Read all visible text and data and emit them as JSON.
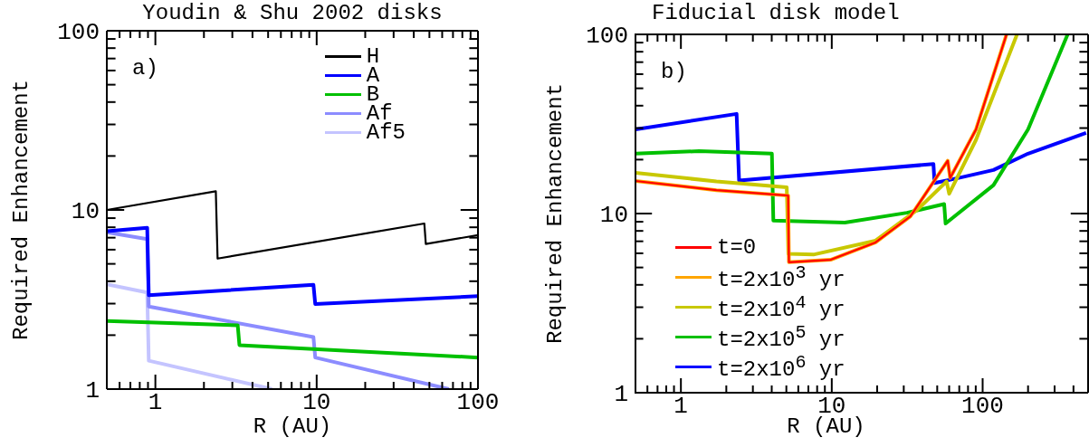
{
  "chart_data": [
    {
      "type": "line",
      "title": "Youdin & Shu 2002 disks",
      "xlabel": "R (AU)",
      "ylabel": "Required Enhancement",
      "annotations": [
        "a)"
      ],
      "log": "xy",
      "legend": "top right",
      "xlim": [
        0.5,
        100
      ],
      "ylim": [
        1,
        100
      ],
      "xticks": [
        {
          "value": 0.5,
          "label": null
        },
        {
          "value": 0.6,
          "label": null
        },
        {
          "value": 0.7,
          "label": null
        },
        {
          "value": 0.8,
          "label": null
        },
        {
          "value": 0.9,
          "label": null
        },
        1,
        {
          "value": 2,
          "label": null
        },
        {
          "value": 3,
          "label": null
        },
        {
          "value": 4,
          "label": null
        },
        {
          "value": 5,
          "label": null
        },
        {
          "value": 6,
          "label": null
        },
        {
          "value": 7,
          "label": null
        },
        {
          "value": 8,
          "label": null
        },
        {
          "value": 9,
          "label": null
        },
        10,
        {
          "value": 20,
          "label": null
        },
        {
          "value": 30,
          "label": null
        },
        {
          "value": 40,
          "label": null
        },
        {
          "value": 50,
          "label": null
        },
        {
          "value": 60,
          "label": null
        },
        {
          "value": 70,
          "label": null
        },
        {
          "value": 80,
          "label": null
        },
        {
          "value": 90,
          "label": null
        },
        100
      ],
      "yticks": [
        1,
        {
          "value": 2,
          "label": null
        },
        {
          "value": 3,
          "label": null
        },
        {
          "value": 4,
          "label": null
        },
        {
          "value": 5,
          "label": null
        },
        {
          "value": 6,
          "label": null
        },
        {
          "value": 7,
          "label": null
        },
        {
          "value": 8,
          "label": null
        },
        {
          "value": 9,
          "label": null
        },
        10,
        {
          "value": 20,
          "label": null
        },
        {
          "value": 30,
          "label": null
        },
        {
          "value": 40,
          "label": null
        },
        {
          "value": 50,
          "label": null
        },
        {
          "value": 60,
          "label": null
        },
        {
          "value": 70,
          "label": null
        },
        {
          "value": 80,
          "label": null
        },
        {
          "value": 90,
          "label": null
        },
        100
      ],
      "series": [
        {
          "name": "H",
          "color": "#000000",
          "x": [
            0.5,
            2.37,
            2.43,
            46.5,
            47.5,
            100
          ],
          "values": [
            10,
            12.7,
            5.35,
            8.4,
            6.46,
            7.23
          ]
        },
        {
          "name": "A",
          "color": "#0000ff",
          "x": [
            0.5,
            0.89,
            0.91,
            9.55,
            9.8,
            100
          ],
          "values": [
            7.6,
            7.95,
            3.34,
            3.82,
            2.98,
            3.3
          ]
        },
        {
          "name": "B",
          "color": "#00c000",
          "x": [
            0.5,
            3.24,
            3.32,
            100
          ],
          "values": [
            2.4,
            2.27,
            1.76,
            1.5
          ]
        },
        {
          "name": "Af",
          "color": "#8c8cff",
          "x": [
            0.5,
            0.89,
            0.91,
            9.55,
            9.8,
            66
          ],
          "values": [
            7.5,
            6.87,
            2.89,
            1.95,
            1.5,
            1
          ]
        },
        {
          "name": "Af5",
          "color": "#c4c4ff",
          "x": [
            0.5,
            0.89,
            0.91,
            5.28
          ],
          "values": [
            3.84,
            3.46,
            1.44,
            1
          ]
        }
      ]
    },
    {
      "type": "line",
      "title": "Fiducial disk model",
      "xlabel": "R (AU)",
      "ylabel": "Required Enhancement",
      "annotations": [
        "b)"
      ],
      "log": "xy",
      "legend": "bottom left",
      "xlim": [
        0.5,
        500
      ],
      "ylim": [
        1,
        100
      ],
      "xticks": [
        {
          "value": 0.5,
          "label": null
        },
        {
          "value": 0.6,
          "label": null
        },
        {
          "value": 0.7,
          "label": null
        },
        {
          "value": 0.8,
          "label": null
        },
        {
          "value": 0.9,
          "label": null
        },
        1,
        {
          "value": 2,
          "label": null
        },
        {
          "value": 3,
          "label": null
        },
        {
          "value": 4,
          "label": null
        },
        {
          "value": 5,
          "label": null
        },
        {
          "value": 6,
          "label": null
        },
        {
          "value": 7,
          "label": null
        },
        {
          "value": 8,
          "label": null
        },
        {
          "value": 9,
          "label": null
        },
        10,
        {
          "value": 20,
          "label": null
        },
        {
          "value": 30,
          "label": null
        },
        {
          "value": 40,
          "label": null
        },
        {
          "value": 50,
          "label": null
        },
        {
          "value": 60,
          "label": null
        },
        {
          "value": 70,
          "label": null
        },
        {
          "value": 80,
          "label": null
        },
        {
          "value": 90,
          "label": null
        },
        100,
        {
          "value": 200,
          "label": null
        },
        {
          "value": 300,
          "label": null
        },
        {
          "value": 400,
          "label": null
        },
        {
          "value": 500,
          "label": null
        }
      ],
      "yticks": [
        1,
        {
          "value": 2,
          "label": null
        },
        {
          "value": 3,
          "label": null
        },
        {
          "value": 4,
          "label": null
        },
        {
          "value": 5,
          "label": null
        },
        {
          "value": 6,
          "label": null
        },
        {
          "value": 7,
          "label": null
        },
        {
          "value": 8,
          "label": null
        },
        {
          "value": 9,
          "label": null
        },
        10,
        {
          "value": 20,
          "label": null
        },
        {
          "value": 30,
          "label": null
        },
        {
          "value": 40,
          "label": null
        },
        {
          "value": 50,
          "label": null
        },
        {
          "value": 60,
          "label": null
        },
        {
          "value": 70,
          "label": null
        },
        {
          "value": 80,
          "label": null
        },
        {
          "value": 90,
          "label": null
        },
        100
      ],
      "series": [
        {
          "name": "t=0",
          "color": "#ff0000",
          "x": [
            0.5,
            1.72,
            5.14,
            5.2,
            9.84,
            19.5,
            33.2,
            58.7,
            60.9,
            90.4,
            144
          ],
          "values": [
            15.2,
            13.5,
            12.6,
            5.35,
            5.52,
            6.9,
            9.65,
            19.7,
            15.8,
            29.5,
            100
          ]
        },
        {
          "name": "t=2x10$^{3}$ yr",
          "color": "#ffa500",
          "x": [
            0.5,
            1.72,
            5.14,
            5.2,
            9.84,
            19.5,
            33.2,
            58.7,
            60.9,
            90.4,
            144
          ],
          "values": [
            15.2,
            13.5,
            12.6,
            5.35,
            5.52,
            6.9,
            9.65,
            19.7,
            15.8,
            29.5,
            100
          ]
        },
        {
          "name": "t=2x10$^{4}$ yr",
          "color": "#c8c800",
          "x": [
            0.5,
            1.72,
            5.03,
            5.16,
            7.56,
            19.5,
            36.9,
            57.7,
            60,
            90.4,
            169
          ],
          "values": [
            16.9,
            15.1,
            14,
            5.96,
            5.9,
            7.06,
            10.5,
            15.1,
            12.9,
            25.8,
            100
          ]
        },
        {
          "name": "t=2x10$^{5}$ yr",
          "color": "#00c000",
          "x": [
            0.5,
            1.32,
            4.01,
            4.1,
            12.2,
            31.5,
            55.6,
            56.8,
            118,
            200,
            366
          ],
          "values": [
            21.6,
            22.3,
            21.6,
            9.15,
            8.9,
            10.1,
            11.3,
            8.8,
            14.4,
            29.5,
            100
          ]
        },
        {
          "name": "t=2x10$^{6}$ yr",
          "color": "#0000ff",
          "x": [
            0.5,
            2.34,
            2.43,
            47.2,
            48,
            69.5,
            118,
            200,
            485
          ],
          "values": [
            29.5,
            36,
            15.3,
            18.9,
            14.8,
            15.8,
            17.5,
            21.6,
            28.2
          ]
        }
      ]
    }
  ]
}
